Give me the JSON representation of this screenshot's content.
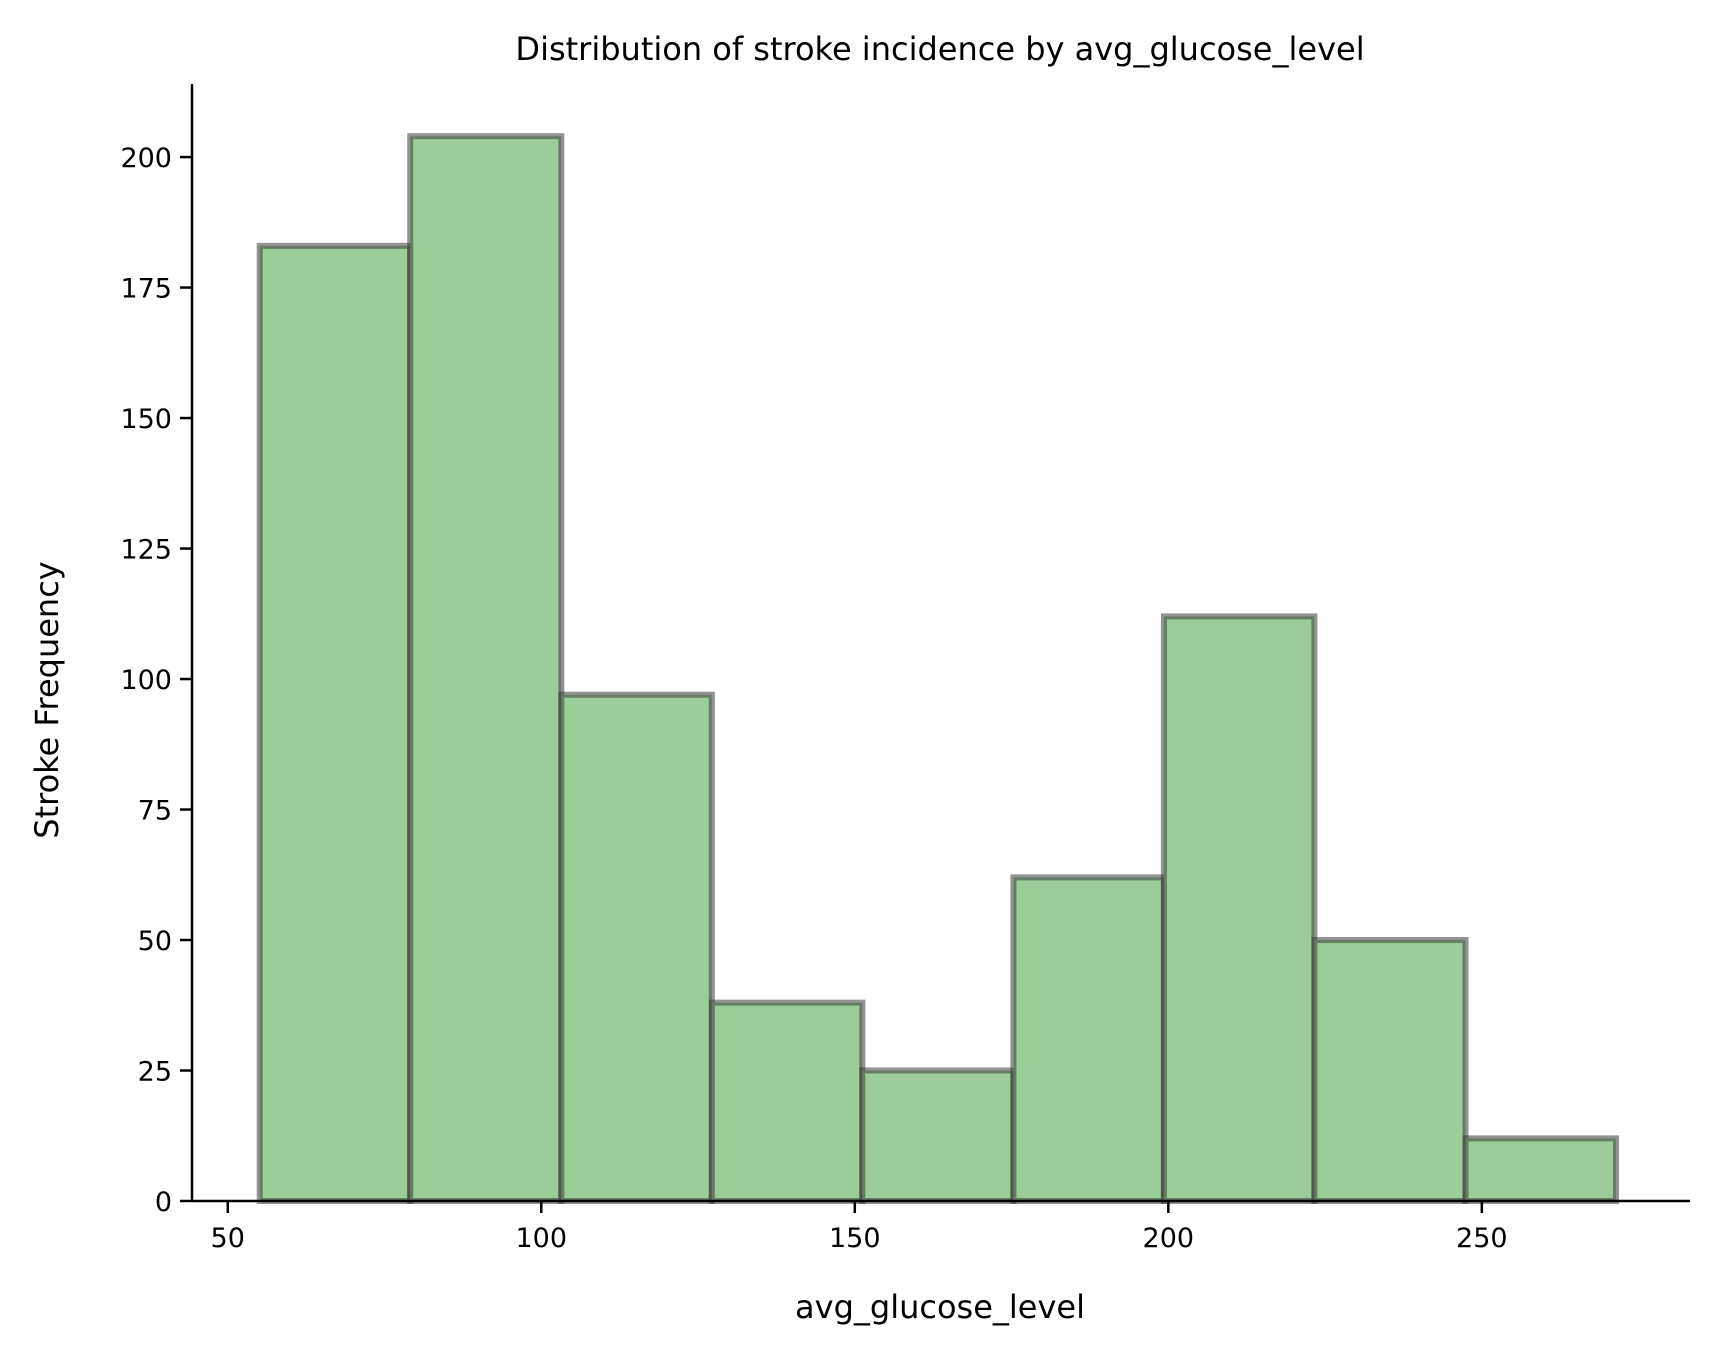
{
  "chart_data": {
    "type": "bar",
    "subtype": "histogram",
    "title": "Distribution of stroke incidence by avg_glucose_level",
    "xlabel": "avg_glucose_level",
    "ylabel": "Stroke Frequency",
    "xlim": [
      44.3,
      283.2
    ],
    "ylim": [
      0,
      214
    ],
    "xticks": [
      50,
      100,
      150,
      200,
      250
    ],
    "yticks": [
      0,
      25,
      50,
      75,
      100,
      125,
      150,
      175,
      200
    ],
    "bin_edges": [
      55.1,
      79.1,
      103.2,
      127.2,
      151.2,
      175.3,
      199.3,
      223.3,
      247.4,
      271.4
    ],
    "values": [
      183,
      204,
      97,
      38,
      25,
      62,
      112,
      50,
      12
    ],
    "grid": false,
    "legend": "none",
    "bar_fill": "#9bcd98",
    "bar_edge": "#3a3a3a"
  }
}
